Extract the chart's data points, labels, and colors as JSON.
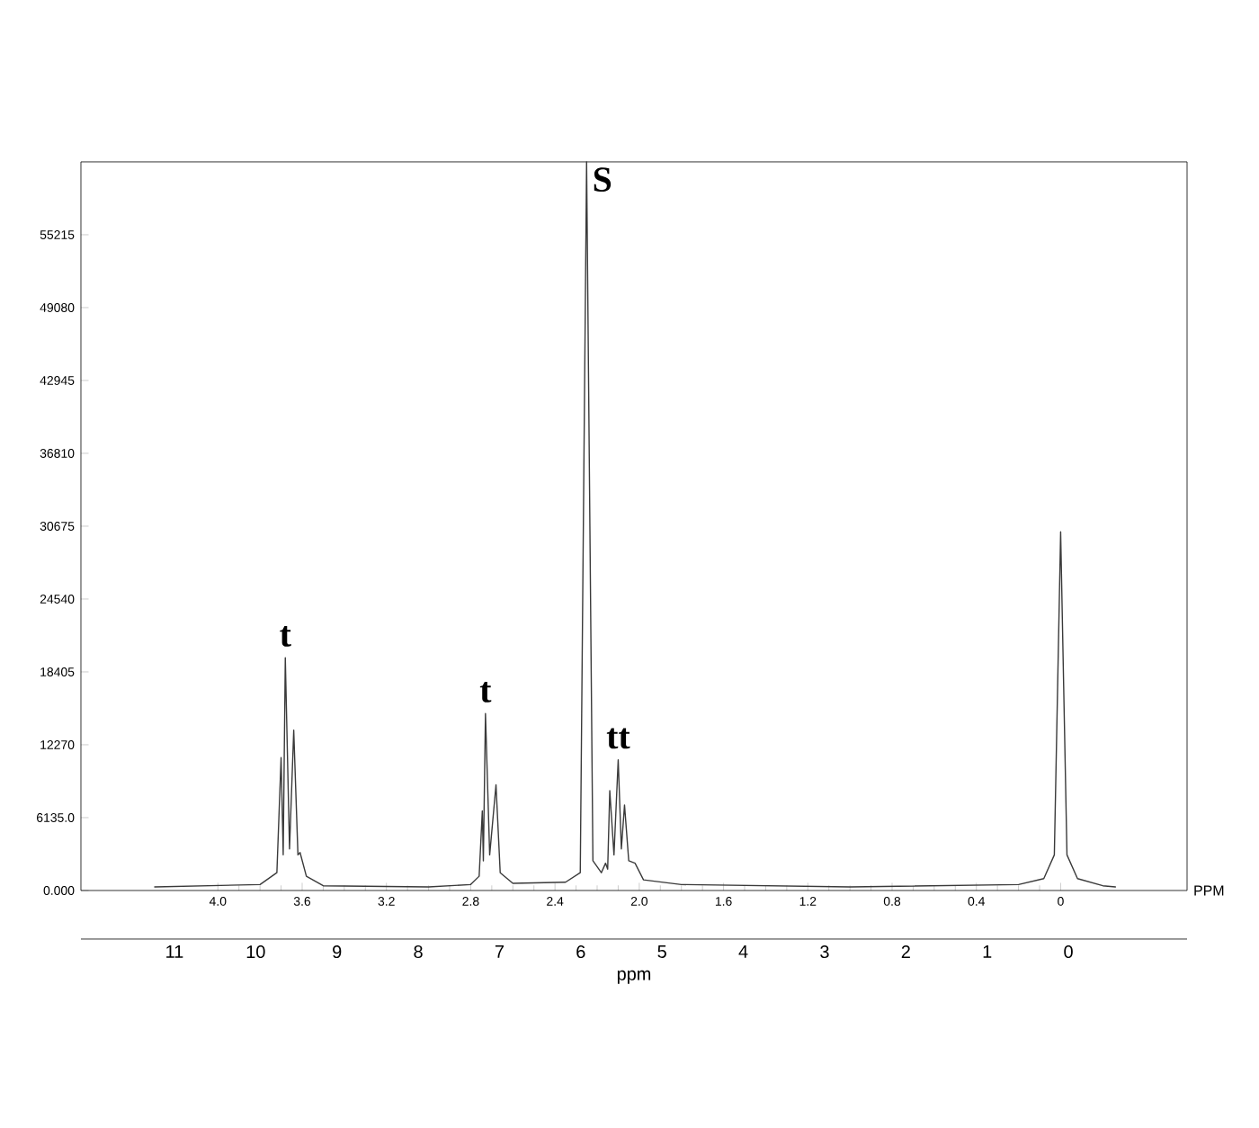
{
  "chart_data": {
    "type": "line",
    "xlabel": "PPM",
    "x2label": "ppm",
    "xlim": [
      4.65,
      -0.6
    ],
    "xticks": [
      {
        "value": 4,
        "label": "4.0"
      },
      3.6,
      3.2,
      2.8,
      2.4,
      {
        "value": 2,
        "label": "2.0"
      },
      1.6,
      1.2,
      0.8,
      0.4,
      0
    ],
    "x2lim": [
      12.15,
      -1.46
    ],
    "x2ticks": [
      11,
      10,
      9,
      8,
      7,
      6,
      5,
      4,
      3,
      2,
      1,
      0
    ],
    "ylim": [
      0,
      61350
    ],
    "yticks": [
      {
        "value": 0,
        "label": "0.000"
      },
      {
        "value": 6135,
        "label": "6135.0"
      },
      12270,
      18405,
      24540,
      30675,
      36810,
      42945,
      49080,
      55215
    ],
    "series": [
      {
        "color": "#3a3a3a",
        "x": [
          4.3,
          3.8,
          3.72,
          3.7,
          3.69,
          3.68,
          3.66,
          3.64,
          3.62,
          3.61,
          3.58,
          3.5,
          3.0,
          2.8,
          2.76,
          2.745,
          2.74,
          2.73,
          2.71,
          2.68,
          2.66,
          2.6,
          2.35,
          2.28,
          2.25,
          2.22,
          2.18,
          2.16,
          2.15,
          2.14,
          2.12,
          2.1,
          2.085,
          2.07,
          2.05,
          2.02,
          1.98,
          1.8,
          1.0,
          0.2,
          0.08,
          0.03,
          0,
          -0.03,
          -0.08,
          -0.2,
          -0.26
        ],
        "values": [
          300,
          500,
          1500,
          11200,
          3000,
          19600,
          3500,
          13500,
          3000,
          3200,
          1200,
          400,
          300,
          500,
          1200,
          6700,
          2500,
          14900,
          3000,
          8900,
          1500,
          600,
          700,
          1500,
          61350,
          2500,
          1500,
          2300,
          1800,
          8400,
          3000,
          11000,
          3500,
          7200,
          2500,
          2300,
          900,
          500,
          300,
          500,
          1000,
          3000,
          30200,
          3000,
          1000,
          400,
          300
        ]
      }
    ],
    "annotations": [
      {
        "text": "t",
        "x": 3.68,
        "y": 19600
      },
      {
        "text": "t",
        "x": 2.73,
        "y": 14900
      },
      {
        "text": "S",
        "x": 2.25,
        "y": 61350
      },
      {
        "text": "tt",
        "x": 2.1,
        "y": 11000
      }
    ]
  }
}
